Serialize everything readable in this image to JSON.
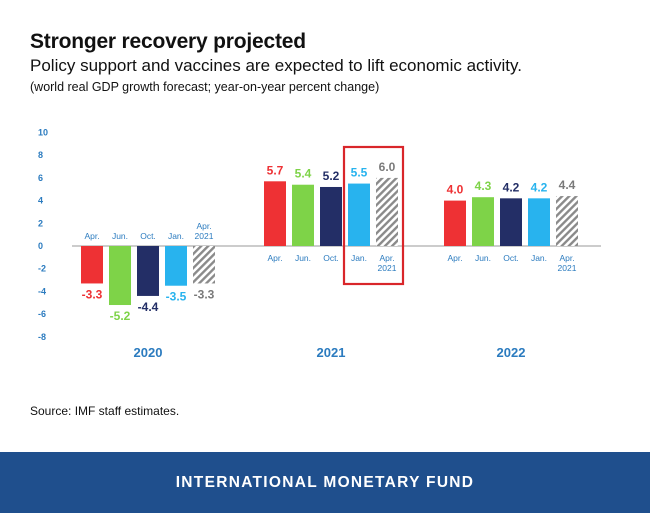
{
  "header": {
    "title": "Stronger recovery projected",
    "subtitle": "Policy support and vaccines are expected to lift economic activity.",
    "note": "(world real GDP growth forecast; year-on-year percent change)"
  },
  "source": "Source: IMF staff estimates.",
  "footer": {
    "org": "INTERNATIONAL MONETARY FUND"
  },
  "colors": {
    "apr": "#ee3134",
    "jun": "#7ed348",
    "oct": "#232e66",
    "jan": "#28b3ee",
    "apr2021_hatch": "#8a8a8a",
    "axis_text": "#2b7bbf",
    "highlight_box": "#d9262a",
    "footer_bg": "#1f4f8d"
  },
  "chart_data": {
    "type": "bar",
    "ylim": [
      -8,
      10
    ],
    "yticks": [
      10,
      8,
      6,
      4,
      2,
      0,
      -2,
      -4,
      -6,
      -8
    ],
    "grid": false,
    "categories": [
      "2020",
      "2021",
      "2022"
    ],
    "highlight": {
      "group": "2021",
      "series": [
        "Jan.",
        "Apr. 2021"
      ]
    },
    "series": [
      {
        "name": "Apr.",
        "label_lines": [
          "Apr."
        ],
        "color_key": "apr",
        "values": [
          -3.3,
          5.7,
          4.0
        ],
        "labels": [
          "-3.3",
          "5.7",
          "4.0"
        ]
      },
      {
        "name": "Jun.",
        "label_lines": [
          "Jun."
        ],
        "color_key": "jun",
        "values": [
          -5.2,
          5.4,
          4.3
        ],
        "labels": [
          "-5.2",
          "5.4",
          "4.3"
        ]
      },
      {
        "name": "Oct.",
        "label_lines": [
          "Oct."
        ],
        "color_key": "oct",
        "values": [
          -4.4,
          5.2,
          4.2
        ],
        "labels": [
          "-4.4",
          "5.2",
          "4.2"
        ]
      },
      {
        "name": "Jan.",
        "label_lines": [
          "Jan."
        ],
        "color_key": "jan",
        "values": [
          -3.5,
          5.5,
          4.2
        ],
        "labels": [
          "-3.5",
          "5.5",
          "4.2"
        ]
      },
      {
        "name": "Apr. 2021",
        "label_lines": [
          "Apr.",
          "2021"
        ],
        "color_key": "apr2021_hatch",
        "hatched": true,
        "values": [
          -3.3,
          6.0,
          4.4
        ],
        "labels": [
          "-3.3",
          "6.0",
          "4.4"
        ]
      }
    ]
  }
}
